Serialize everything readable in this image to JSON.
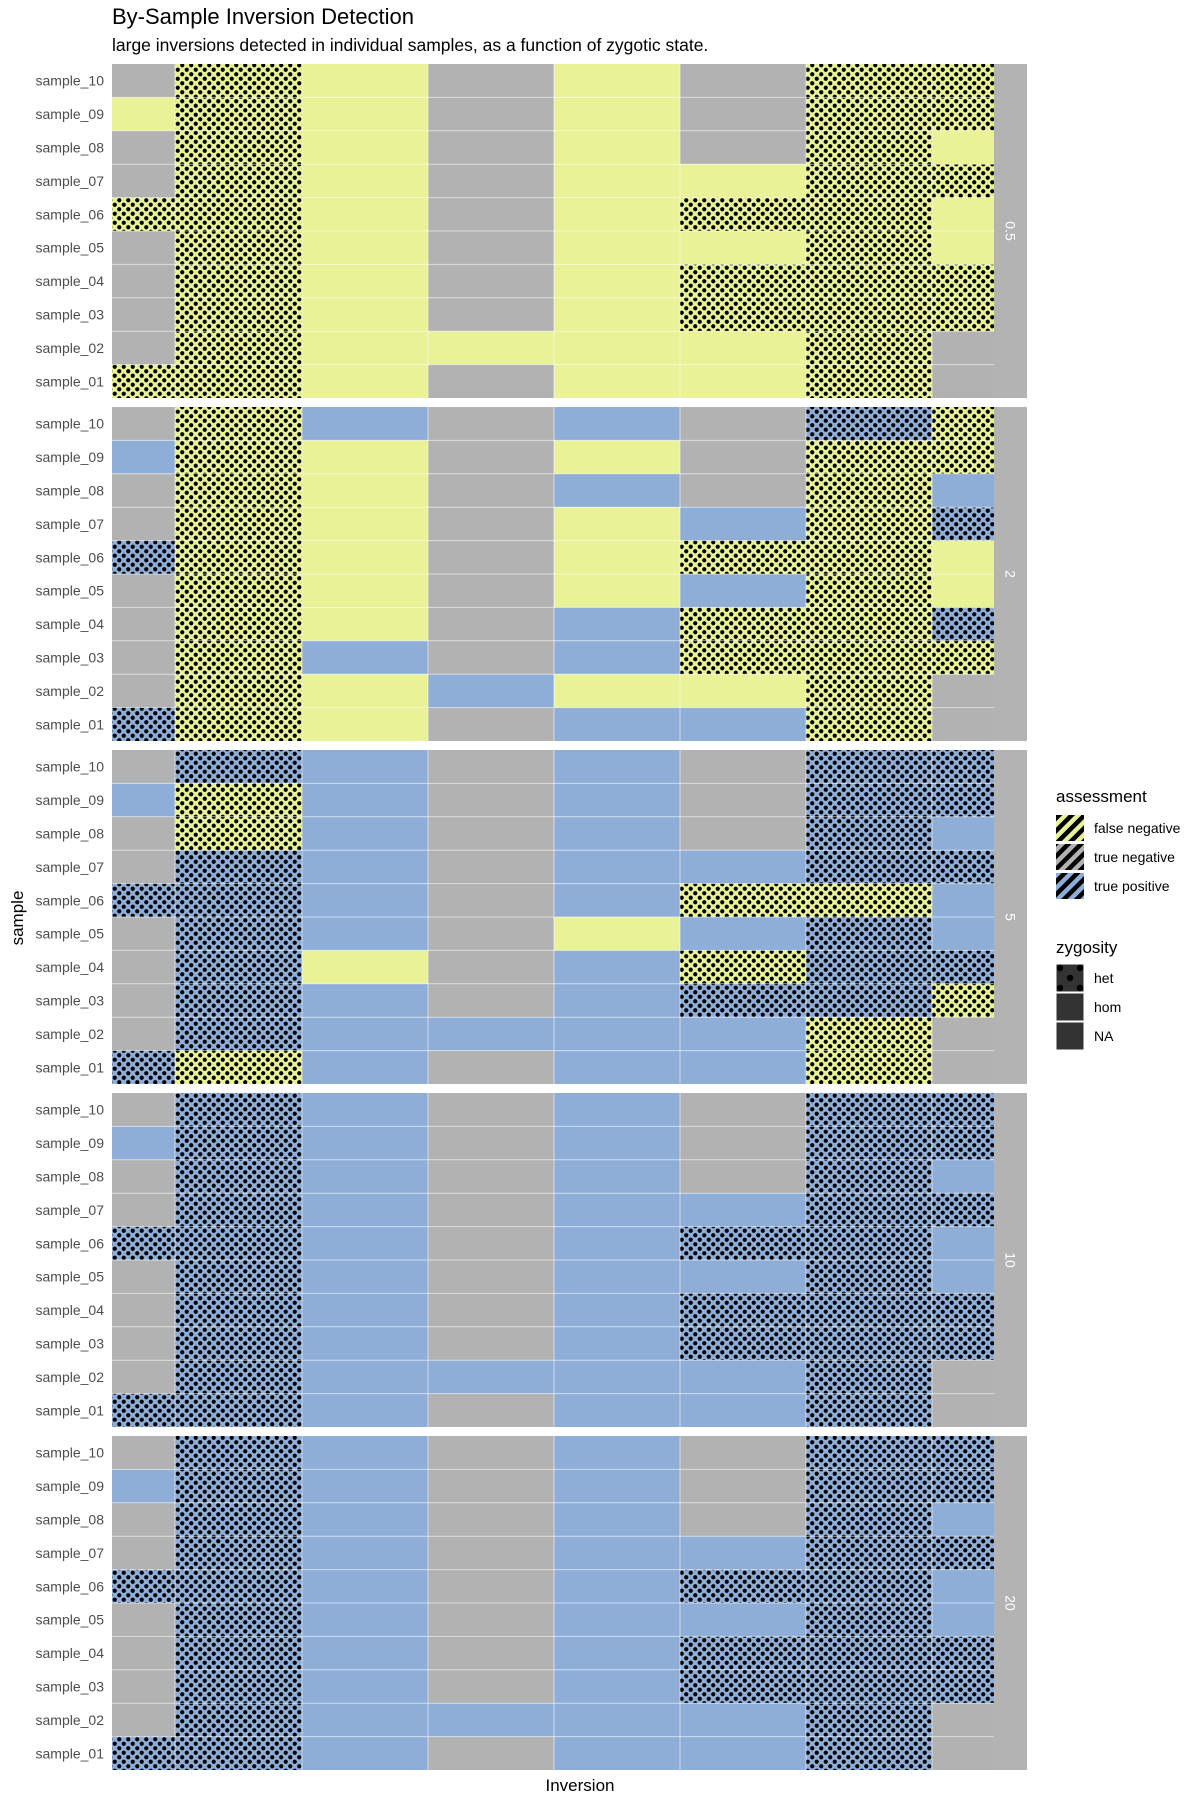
{
  "chart_data": {
    "type": "heatmap",
    "title": "By-Sample Inversion Detection",
    "subtitle": "large inversions detected in individual samples, as a function of zygotic state.",
    "xlabel": "Inversion",
    "ylabel": "sample",
    "samples": [
      "sample_01",
      "sample_02",
      "sample_03",
      "sample_04",
      "sample_05",
      "sample_06",
      "sample_07",
      "sample_08",
      "sample_09",
      "sample_10"
    ],
    "inversion_columns": 8,
    "assessment_colors": {
      "false negative": "#e9f296",
      "true negative": "#b2b2b2",
      "true positive": "#8eaed8"
    },
    "legend": {
      "assessment": {
        "title": "assessment",
        "entries": [
          "false negative",
          "true negative",
          "true positive"
        ]
      },
      "zygosity": {
        "title": "zygosity",
        "entries": [
          "het",
          "hom",
          "NA"
        ]
      }
    },
    "cell_codes": "assessment: F = false negative, T = true positive, N = true negative; zygosity: h = het, o = hom, n = NA; rows listed sample_10 to sample_01, columns are inversions 1-8",
    "panels": [
      {
        "facet": "0.5",
        "rows": [
          [
            "Nn",
            "Fh",
            "Fo",
            "Nn",
            "Fo",
            "Nn",
            "Fh",
            "Fh"
          ],
          [
            "Fo",
            "Fh",
            "Fo",
            "Nn",
            "Fo",
            "Nn",
            "Fh",
            "Fh"
          ],
          [
            "Nn",
            "Fh",
            "Fo",
            "Nn",
            "Fo",
            "Nn",
            "Fh",
            "Fo"
          ],
          [
            "Nn",
            "Fh",
            "Fo",
            "Nn",
            "Fo",
            "Fo",
            "Fh",
            "Fh"
          ],
          [
            "Fh",
            "Fh",
            "Fo",
            "Nn",
            "Fo",
            "Fh",
            "Fh",
            "Fo"
          ],
          [
            "Nn",
            "Fh",
            "Fo",
            "Nn",
            "Fo",
            "Fo",
            "Fh",
            "Fo"
          ],
          [
            "Nn",
            "Fh",
            "Fo",
            "Nn",
            "Fo",
            "Fh",
            "Fh",
            "Fh"
          ],
          [
            "Nn",
            "Fh",
            "Fo",
            "Nn",
            "Fo",
            "Fh",
            "Fh",
            "Fh"
          ],
          [
            "Nn",
            "Fh",
            "Fo",
            "Fo",
            "Fo",
            "Fo",
            "Fh",
            "Nn"
          ],
          [
            "Fh",
            "Fh",
            "Fo",
            "Nn",
            "Fo",
            "Fo",
            "Fh",
            "Nn"
          ]
        ]
      },
      {
        "facet": "2",
        "rows": [
          [
            "Nn",
            "Fh",
            "To",
            "Nn",
            "To",
            "Nn",
            "Th",
            "Fh"
          ],
          [
            "To",
            "Fh",
            "Fo",
            "Nn",
            "Fo",
            "Nn",
            "Fh",
            "Fh"
          ],
          [
            "Nn",
            "Fh",
            "Fo",
            "Nn",
            "To",
            "Nn",
            "Fh",
            "To"
          ],
          [
            "Nn",
            "Fh",
            "Fo",
            "Nn",
            "Fo",
            "To",
            "Fh",
            "Th"
          ],
          [
            "Th",
            "Fh",
            "Fo",
            "Nn",
            "Fo",
            "Fh",
            "Fh",
            "Fo"
          ],
          [
            "Nn",
            "Fh",
            "Fo",
            "Nn",
            "Fo",
            "To",
            "Fh",
            "Fo"
          ],
          [
            "Nn",
            "Fh",
            "Fo",
            "Nn",
            "To",
            "Fh",
            "Fh",
            "Th"
          ],
          [
            "Nn",
            "Fh",
            "To",
            "Nn",
            "To",
            "Fh",
            "Fh",
            "Fh"
          ],
          [
            "Nn",
            "Fh",
            "Fo",
            "To",
            "Fo",
            "Fo",
            "Fh",
            "Nn"
          ],
          [
            "Th",
            "Fh",
            "Fo",
            "Nn",
            "To",
            "To",
            "Fh",
            "Nn"
          ]
        ]
      },
      {
        "facet": "5",
        "rows": [
          [
            "Nn",
            "Th",
            "To",
            "Nn",
            "To",
            "Nn",
            "Th",
            "Th"
          ],
          [
            "To",
            "Fh",
            "To",
            "Nn",
            "To",
            "Nn",
            "Th",
            "Th"
          ],
          [
            "Nn",
            "Fh",
            "To",
            "Nn",
            "To",
            "Nn",
            "Th",
            "To"
          ],
          [
            "Nn",
            "Th",
            "To",
            "Nn",
            "To",
            "To",
            "Th",
            "Th"
          ],
          [
            "Th",
            "Th",
            "To",
            "Nn",
            "To",
            "Fh",
            "Fh",
            "To"
          ],
          [
            "Nn",
            "Th",
            "To",
            "Nn",
            "Fo",
            "To",
            "Th",
            "To"
          ],
          [
            "Nn",
            "Th",
            "Fo",
            "Nn",
            "To",
            "Fh",
            "Th",
            "Th"
          ],
          [
            "Nn",
            "Th",
            "To",
            "Nn",
            "To",
            "Th",
            "Th",
            "Fh"
          ],
          [
            "Nn",
            "Th",
            "To",
            "To",
            "To",
            "To",
            "Fh",
            "Nn"
          ],
          [
            "Th",
            "Fh",
            "To",
            "Nn",
            "To",
            "To",
            "Fh",
            "Nn"
          ]
        ]
      },
      {
        "facet": "10",
        "rows": [
          [
            "Nn",
            "Th",
            "To",
            "Nn",
            "To",
            "Nn",
            "Th",
            "Th"
          ],
          [
            "To",
            "Th",
            "To",
            "Nn",
            "To",
            "Nn",
            "Th",
            "Th"
          ],
          [
            "Nn",
            "Th",
            "To",
            "Nn",
            "To",
            "Nn",
            "Th",
            "To"
          ],
          [
            "Nn",
            "Th",
            "To",
            "Nn",
            "To",
            "To",
            "Th",
            "Th"
          ],
          [
            "Th",
            "Th",
            "To",
            "Nn",
            "To",
            "Th",
            "Th",
            "To"
          ],
          [
            "Nn",
            "Th",
            "To",
            "Nn",
            "To",
            "To",
            "Th",
            "To"
          ],
          [
            "Nn",
            "Th",
            "To",
            "Nn",
            "To",
            "Th",
            "Th",
            "Th"
          ],
          [
            "Nn",
            "Th",
            "To",
            "Nn",
            "To",
            "Th",
            "Th",
            "Th"
          ],
          [
            "Nn",
            "Th",
            "To",
            "To",
            "To",
            "To",
            "Th",
            "Nn"
          ],
          [
            "Th",
            "Th",
            "To",
            "Nn",
            "To",
            "To",
            "Th",
            "Nn"
          ]
        ]
      },
      {
        "facet": "20",
        "rows": [
          [
            "Nn",
            "Th",
            "To",
            "Nn",
            "To",
            "Nn",
            "Th",
            "Th"
          ],
          [
            "To",
            "Th",
            "To",
            "Nn",
            "To",
            "Nn",
            "Th",
            "Th"
          ],
          [
            "Nn",
            "Th",
            "To",
            "Nn",
            "To",
            "Nn",
            "Th",
            "To"
          ],
          [
            "Nn",
            "Th",
            "To",
            "Nn",
            "To",
            "To",
            "Th",
            "Th"
          ],
          [
            "Th",
            "Th",
            "To",
            "Nn",
            "To",
            "Th",
            "Th",
            "To"
          ],
          [
            "Nn",
            "Th",
            "To",
            "Nn",
            "To",
            "To",
            "Th",
            "To"
          ],
          [
            "Nn",
            "Th",
            "To",
            "Nn",
            "To",
            "Th",
            "Th",
            "Th"
          ],
          [
            "Nn",
            "Th",
            "To",
            "Nn",
            "To",
            "Th",
            "Th",
            "Th"
          ],
          [
            "Nn",
            "Th",
            "To",
            "To",
            "To",
            "To",
            "Th",
            "Nn"
          ],
          [
            "Th",
            "Th",
            "To",
            "Nn",
            "To",
            "To",
            "Th",
            "Nn"
          ]
        ]
      }
    ]
  }
}
